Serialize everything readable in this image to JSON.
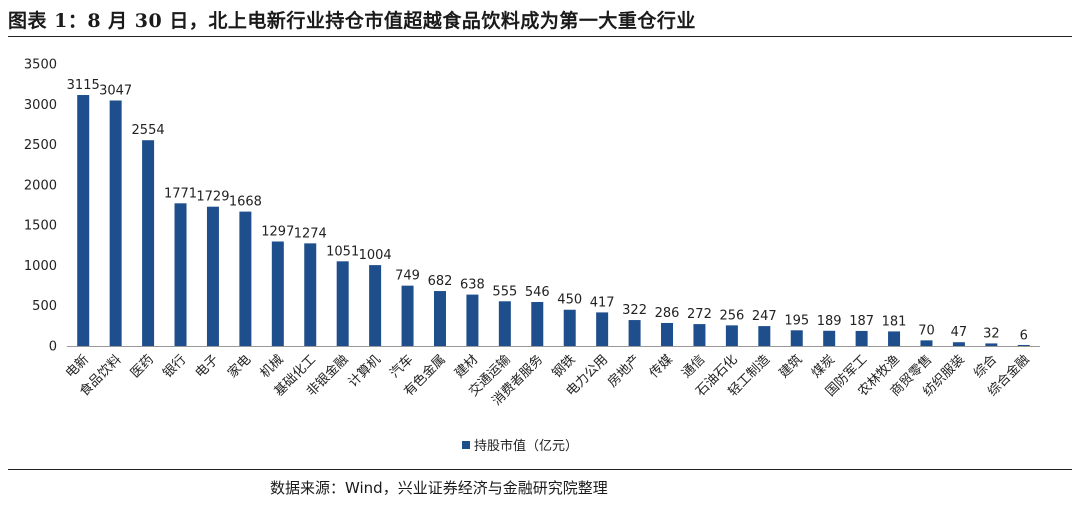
{
  "figure": {
    "title": "图表 1：8 月 30 日，北上电新行业持仓市值超越食品饮料成为第一大重仓行业",
    "source": "数据来源：Wind，兴业证券经济与金融研究院整理"
  },
  "colors": {
    "bar": "#1f4e8c",
    "axis": "#999999",
    "rule": "#222222"
  },
  "chart_data": {
    "type": "bar",
    "title": "",
    "xlabel": "",
    "ylabel": "",
    "ylim": [
      0,
      3500
    ],
    "yticks": [
      0,
      500,
      1000,
      1500,
      2000,
      2500,
      3000,
      3500
    ],
    "grid": false,
    "legend_position": "bottom",
    "categories": [
      "电新",
      "食品饮料",
      "医药",
      "银行",
      "电子",
      "家电",
      "机械",
      "基础化工",
      "非银金融",
      "计算机",
      "汽车",
      "有色金属",
      "建材",
      "交通运输",
      "消费者服务",
      "钢铁",
      "电力公用",
      "房地产",
      "传媒",
      "通信",
      "石油石化",
      "轻工制造",
      "建筑",
      "煤炭",
      "国防军工",
      "农林牧渔",
      "商贸零售",
      "纺织服装",
      "综合",
      "综合金融"
    ],
    "series": [
      {
        "name": "持股市值（亿元）",
        "values": [
          3115,
          3047,
          2554,
          1771,
          1729,
          1668,
          1297,
          1274,
          1051,
          1004,
          749,
          682,
          638,
          555,
          546,
          450,
          417,
          322,
          286,
          272,
          256,
          247,
          195,
          189,
          187,
          181,
          70,
          47,
          32,
          6
        ]
      }
    ],
    "value_labels": [
      "3115",
      "3047",
      "2554",
      "1771",
      "1729",
      "1668",
      "1297",
      "1274",
      "1051",
      "1004",
      "749",
      "682",
      "638",
      "555",
      "546",
      "450",
      "417",
      "322",
      "286",
      "272",
      "256",
      "247",
      "195",
      "189",
      "187",
      "181",
      "70",
      "47",
      "32",
      "6"
    ]
  }
}
